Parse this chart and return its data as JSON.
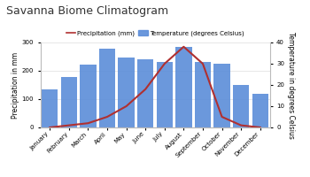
{
  "title": "Savanna Biome Climatogram",
  "months": [
    "January",
    "February",
    "March",
    "April",
    "May",
    "June",
    "July",
    "August",
    "September",
    "October",
    "November",
    "December"
  ],
  "precipitation": [
    135,
    178,
    222,
    278,
    247,
    240,
    232,
    285,
    232,
    225,
    150,
    118
  ],
  "temperature": [
    0,
    1,
    2,
    5,
    10,
    18,
    30,
    38,
    30,
    5,
    1,
    0
  ],
  "bar_color": "#5b8dd9",
  "line_color": "#b03030",
  "ylabel_left": "Precipitation in mm",
  "ylabel_right": "Temperature in degrees Celsius",
  "ylim_left": [
    0,
    300
  ],
  "ylim_right": [
    0,
    40
  ],
  "yticks_left": [
    0,
    100,
    200,
    300
  ],
  "yticks_right": [
    0,
    10,
    20,
    30,
    40
  ],
  "legend_precip": "Precipitation (mm)",
  "legend_temp": "Temperature (degrees Celsius)",
  "bg_color": "#ffffff",
  "title_fontsize": 9,
  "label_fontsize": 5.5,
  "tick_fontsize": 5,
  "legend_fontsize": 5
}
